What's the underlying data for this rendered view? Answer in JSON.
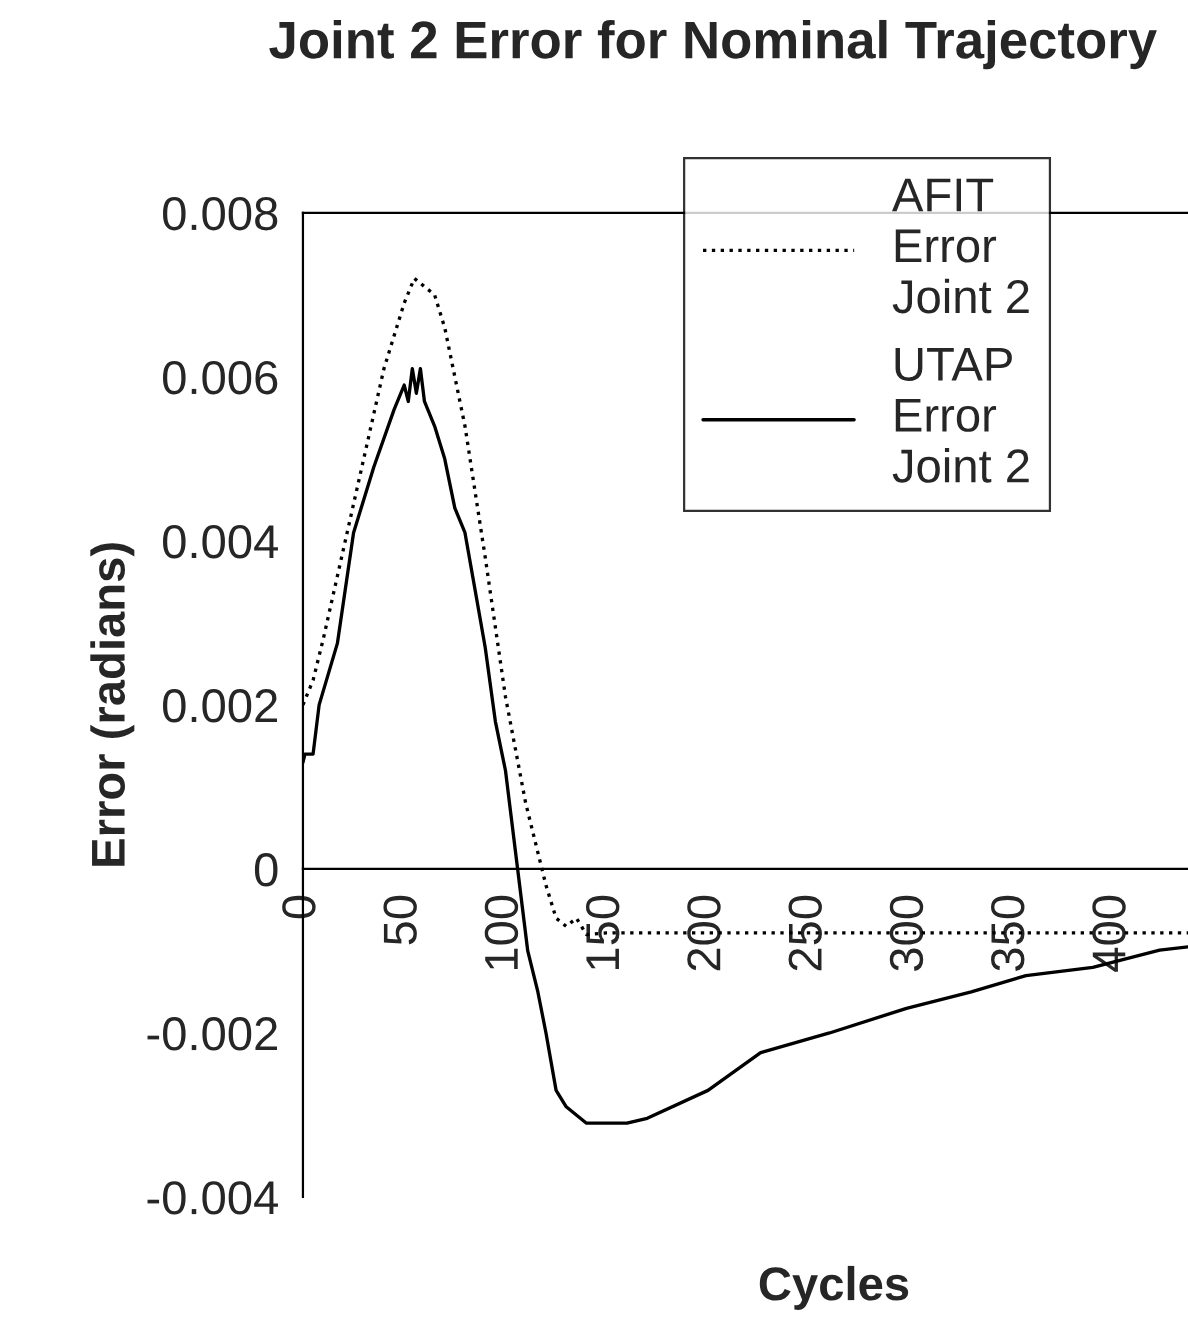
{
  "chart_data": {
    "type": "line",
    "title": "Joint 2 Error for Nominal Trajectory",
    "xlabel": "Cycles",
    "ylabel": "Error (radians)",
    "xlim": [
      0,
      437
    ],
    "ylim": [
      -0.004,
      0.008
    ],
    "xticks": [
      0,
      50,
      100,
      150,
      200,
      250,
      300,
      350,
      400
    ],
    "yticks": [
      {
        "value": -0.004,
        "label": "-0.004"
      },
      {
        "value": -0.002,
        "label": "-0.002"
      },
      0,
      {
        "value": 0.002,
        "label": "0.002"
      },
      {
        "value": 0.004,
        "label": "0.004"
      },
      {
        "value": 0.006,
        "label": "0.006"
      },
      {
        "value": 0.008,
        "label": "0.008"
      }
    ],
    "grid": false,
    "legend": "top right",
    "series": [
      {
        "name": "AFIT Error Joint 2",
        "color": "#000000",
        "line_style": "dotted",
        "x": [
          0,
          5,
          10,
          20,
          30,
          40,
          50,
          55,
          60,
          65,
          70,
          80,
          90,
          100,
          110,
          120,
          125,
          130,
          135,
          140,
          150,
          200,
          250,
          300,
          350,
          400,
          437
        ],
        "values": [
          0.002,
          0.0023,
          0.0028,
          0.0039,
          0.005,
          0.0061,
          0.0069,
          0.0072,
          0.0071,
          0.007,
          0.0066,
          0.0054,
          0.0038,
          0.0021,
          0.0008,
          -0.0002,
          -0.0006,
          -0.0007,
          -0.0006,
          -0.0008,
          -0.00078,
          -0.00078,
          -0.00078,
          -0.00078,
          -0.00078,
          -0.00078,
          -0.00078
        ]
      },
      {
        "name": "UTAP Error Joint 2",
        "color": "#000000",
        "line_style": "solid",
        "x": [
          0,
          1,
          5,
          8,
          17,
          25,
          35,
          45,
          50,
          52,
          54,
          56,
          58,
          60,
          65,
          70,
          75,
          80,
          85,
          90,
          95,
          100,
          106,
          111,
          116,
          120,
          125,
          130,
          140,
          147,
          160,
          170,
          200,
          226,
          260,
          298,
          330,
          357,
          390,
          423,
          437
        ],
        "values": [
          0.0013,
          0.0014,
          0.0014,
          0.002,
          0.00275,
          0.0041,
          0.0049,
          0.0056,
          0.0059,
          0.0057,
          0.0061,
          0.0058,
          0.0061,
          0.0057,
          0.0054,
          0.005,
          0.0044,
          0.0041,
          0.0034,
          0.0027,
          0.0018,
          0.0012,
          0.0,
          -0.001,
          -0.0015,
          -0.002,
          -0.0027,
          -0.0029,
          -0.0031,
          -0.0031,
          -0.0031,
          -0.00304,
          -0.0027,
          -0.00224,
          -0.002,
          -0.0017,
          -0.0015,
          -0.0013,
          -0.0012,
          -0.00099,
          -0.00095
        ]
      }
    ]
  }
}
